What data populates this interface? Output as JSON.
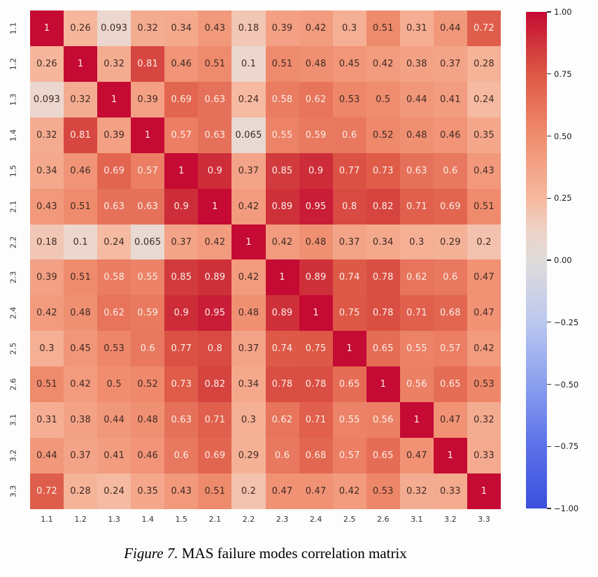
{
  "figure": {
    "caption_prefix": "Figure 7.",
    "caption_text": " MAS failure modes correlation matrix"
  },
  "chart_data": {
    "type": "heatmap",
    "title": "MAS failure modes correlation matrix",
    "categories": [
      "1.1",
      "1.2",
      "1.3",
      "1.4",
      "1.5",
      "2.1",
      "2.2",
      "2.3",
      "2.4",
      "2.5",
      "2.6",
      "3.1",
      "3.2",
      "3.3"
    ],
    "matrix": [
      [
        "1",
        "0.26",
        "0.093",
        "0.32",
        "0.34",
        "0.43",
        "0.18",
        "0.39",
        "0.42",
        "0.3",
        "0.51",
        "0.31",
        "0.44",
        "0.72"
      ],
      [
        "0.26",
        "1",
        "0.32",
        "0.81",
        "0.46",
        "0.51",
        "0.1",
        "0.51",
        "0.48",
        "0.45",
        "0.42",
        "0.38",
        "0.37",
        "0.28"
      ],
      [
        "0.093",
        "0.32",
        "1",
        "0.39",
        "0.69",
        "0.63",
        "0.24",
        "0.58",
        "0.62",
        "0.53",
        "0.5",
        "0.44",
        "0.41",
        "0.24"
      ],
      [
        "0.32",
        "0.81",
        "0.39",
        "1",
        "0.57",
        "0.63",
        "0.065",
        "0.55",
        "0.59",
        "0.6",
        "0.52",
        "0.48",
        "0.46",
        "0.35"
      ],
      [
        "0.34",
        "0.46",
        "0.69",
        "0.57",
        "1",
        "0.9",
        "0.37",
        "0.85",
        "0.9",
        "0.77",
        "0.73",
        "0.63",
        "0.6",
        "0.43"
      ],
      [
        "0.43",
        "0.51",
        "0.63",
        "0.63",
        "0.9",
        "1",
        "0.42",
        "0.89",
        "0.95",
        "0.8",
        "0.82",
        "0.71",
        "0.69",
        "0.51"
      ],
      [
        "0.18",
        "0.1",
        "0.24",
        "0.065",
        "0.37",
        "0.42",
        "1",
        "0.42",
        "0.48",
        "0.37",
        "0.34",
        "0.3",
        "0.29",
        "0.2"
      ],
      [
        "0.39",
        "0.51",
        "0.58",
        "0.55",
        "0.85",
        "0.89",
        "0.42",
        "1",
        "0.89",
        "0.74",
        "0.78",
        "0.62",
        "0.6",
        "0.47"
      ],
      [
        "0.42",
        "0.48",
        "0.62",
        "0.59",
        "0.9",
        "0.95",
        "0.48",
        "0.89",
        "1",
        "0.75",
        "0.78",
        "0.71",
        "0.68",
        "0.47"
      ],
      [
        "0.3",
        "0.45",
        "0.53",
        "0.6",
        "0.77",
        "0.8",
        "0.37",
        "0.74",
        "0.75",
        "1",
        "0.65",
        "0.55",
        "0.57",
        "0.42"
      ],
      [
        "0.51",
        "0.42",
        "0.5",
        "0.52",
        "0.73",
        "0.82",
        "0.34",
        "0.78",
        "0.78",
        "0.65",
        "1",
        "0.56",
        "0.65",
        "0.53"
      ],
      [
        "0.31",
        "0.38",
        "0.44",
        "0.48",
        "0.63",
        "0.71",
        "0.3",
        "0.62",
        "0.71",
        "0.55",
        "0.56",
        "1",
        "0.47",
        "0.32"
      ],
      [
        "0.44",
        "0.37",
        "0.41",
        "0.46",
        "0.6",
        "0.69",
        "0.29",
        "0.6",
        "0.68",
        "0.57",
        "0.65",
        "0.47",
        "1",
        "0.33"
      ],
      [
        "0.72",
        "0.28",
        "0.24",
        "0.35",
        "0.43",
        "0.51",
        "0.2",
        "0.47",
        "0.47",
        "0.42",
        "0.53",
        "0.32",
        "0.33",
        "1"
      ]
    ],
    "colorbar": {
      "min": -1,
      "max": 1,
      "tick_labels": [
        "1.00",
        "0.75",
        "0.50",
        "0.25",
        "0.00",
        "−0.25",
        "−0.50",
        "−0.75",
        "−1.00"
      ],
      "tick_values": [
        1,
        0.75,
        0.5,
        0.25,
        0,
        -0.25,
        -0.5,
        -0.75,
        -1
      ]
    },
    "colors": {
      "max_red": "#c50a33",
      "mid_gray": "#e0dcda",
      "min_blue": "#3c50de",
      "annot_dark": "#402a22",
      "annot_light": "#fbeee7",
      "tick_text": "#333333"
    },
    "colormap_stops": [
      [
        -1.0,
        [
          60,
          80,
          222
        ]
      ],
      [
        -0.75,
        [
          92,
          112,
          233
        ]
      ],
      [
        -0.5,
        [
          138,
          159,
          238
        ]
      ],
      [
        -0.25,
        [
          187,
          199,
          239
        ]
      ],
      [
        0.0,
        [
          224,
          220,
          218
        ]
      ],
      [
        0.1,
        [
          236,
          215,
          206
        ]
      ],
      [
        0.25,
        [
          246,
          184,
          158
        ]
      ],
      [
        0.5,
        [
          240,
          141,
          111
        ]
      ],
      [
        0.75,
        [
          221,
          88,
          70
        ]
      ],
      [
        0.9,
        [
          205,
          45,
          57
        ]
      ],
      [
        1.0,
        [
          197,
          10,
          51
        ]
      ]
    ],
    "annot_white_threshold": 0.55
  }
}
